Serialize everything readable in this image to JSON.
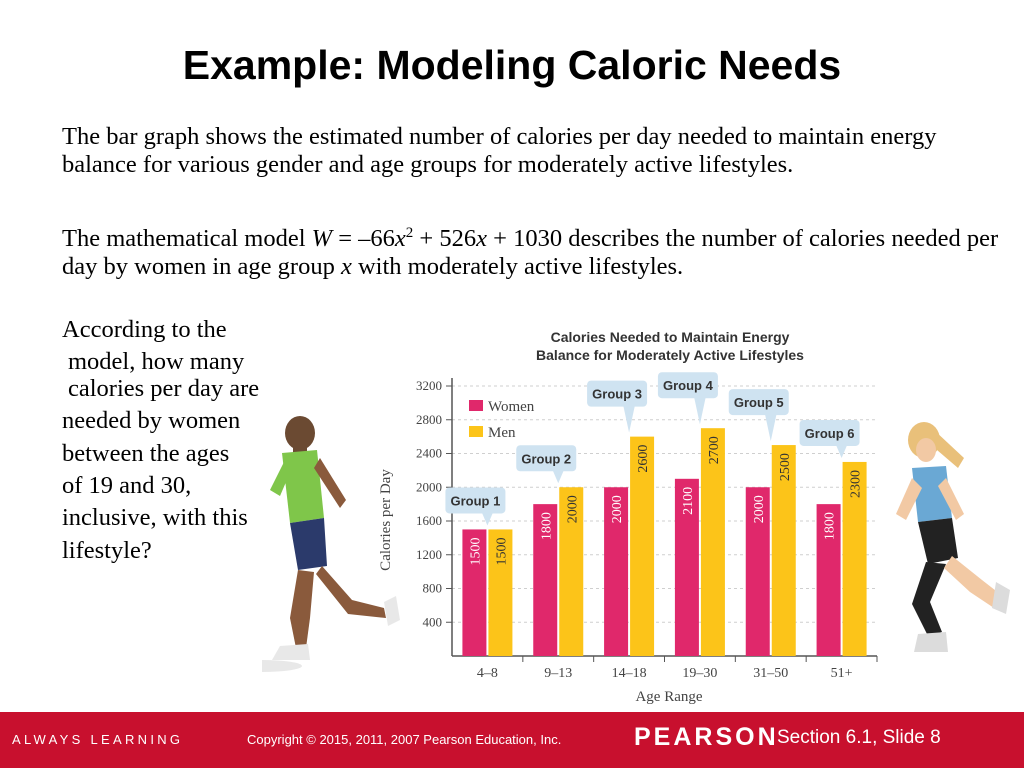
{
  "slide": {
    "title": "Example: Modeling Caloric Needs",
    "paragraph1": "The bar graph shows the estimated number of calories per day needed to maintain energy balance for various gender and age groups for moderately active lifestyles.",
    "model_prefix": "The mathematical model ",
    "model_W": "W",
    "model_eq1": " = –66",
    "model_x1": "x",
    "model_exp": "2",
    "model_eq2": " + 526",
    "model_x2": "x",
    "model_eq3": " + 1030 describes the number of calories needed per day by women in age group ",
    "model_x3": "x",
    "model_suffix": " with moderately active lifestyles.",
    "question_lines": [
      "According to the",
      "model, how many",
      "calories per day are",
      "needed by women",
      "between the ages",
      "of 19 and 30,",
      "inclusive, with this",
      "lifestyle?"
    ]
  },
  "chart_data": {
    "type": "bar",
    "title": "Calories Needed to Maintain Energy Balance for Moderately Active Lifestyles",
    "title_lines": [
      "Calories Needed to Maintain Energy",
      "Balance for Moderately Active Lifestyles"
    ],
    "xlabel": "Age Range",
    "ylabel": "Calories per Day",
    "ylim": [
      0,
      3200
    ],
    "yticks": [
      400,
      800,
      1200,
      1600,
      2000,
      2400,
      2800,
      3200
    ],
    "categories": [
      "4–8",
      "9–13",
      "14–18",
      "19–30",
      "31–50",
      "51+"
    ],
    "groups": [
      "Group 1",
      "Group 2",
      "Group 3",
      "Group 4",
      "Group 5",
      "Group 6"
    ],
    "series": [
      {
        "name": "Women",
        "values": [
          1500,
          1800,
          2000,
          2100,
          2000,
          1800
        ],
        "color": "#e0286b"
      },
      {
        "name": "Men",
        "values": [
          1500,
          2000,
          2600,
          2700,
          2500,
          2300
        ],
        "color": "#fcc419"
      }
    ],
    "legend_position": "top-left",
    "grid": true
  },
  "footer": {
    "brand": "ALWAYS LEARNING",
    "copyright": "Copyright © 2015, 2011, 2007 Pearson Education, Inc.",
    "publisher": "PEARSON",
    "slide_label": "Section 6.1,  Slide 8",
    "color": "#c8102e"
  }
}
